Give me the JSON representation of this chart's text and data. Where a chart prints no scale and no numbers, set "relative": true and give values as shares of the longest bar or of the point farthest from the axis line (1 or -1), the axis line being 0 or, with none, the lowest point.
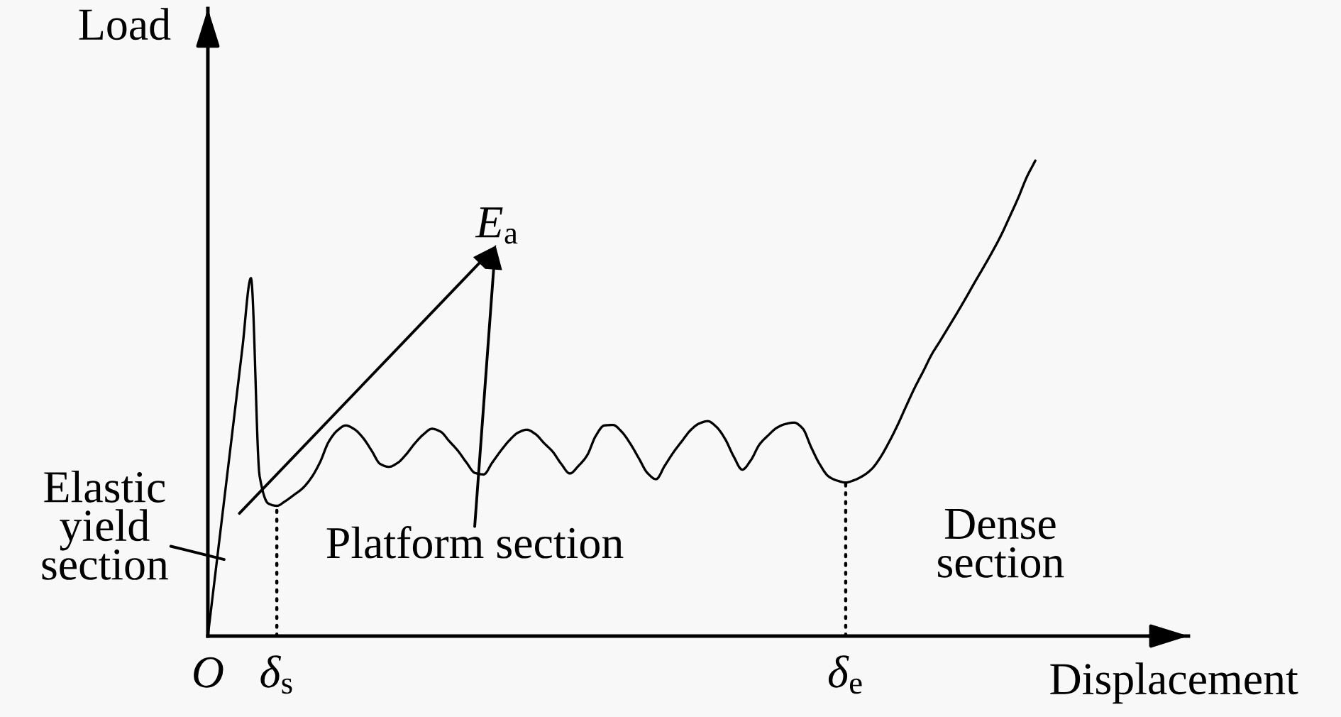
{
  "chart_data": {
    "type": "line",
    "relative": true,
    "xlabel": "Displacement",
    "ylabel": "Load",
    "categories": [
      "O",
      null,
      null,
      null,
      null,
      null,
      null,
      null,
      "δ$_{s}$",
      null,
      null,
      null,
      null,
      null,
      null,
      null,
      null,
      null,
      null,
      null,
      null,
      null,
      null,
      null,
      null,
      null,
      null,
      null,
      null,
      null,
      null,
      null,
      null,
      null,
      null,
      null,
      null,
      null,
      null,
      null,
      null,
      null,
      null,
      null,
      null,
      null,
      null,
      null,
      null,
      null,
      null,
      null,
      null,
      null,
      null,
      null,
      null,
      null,
      null,
      null,
      null,
      null,
      null,
      null,
      null,
      null,
      null,
      null,
      null,
      null,
      null,
      null,
      null,
      null,
      "δ$_{e}$",
      null,
      null,
      null,
      null,
      null,
      null,
      null,
      null,
      null,
      null,
      null,
      null,
      null,
      null,
      null,
      null,
      null,
      null,
      null,
      null,
      null,
      null
    ],
    "series": [
      {
        "color": "#000000",
        "values": [
          0,
          0.151,
          0.302,
          0.453,
          0.605,
          0.753,
          0.337,
          0.279,
          0.274,
          0.284,
          0.297,
          0.311,
          0.333,
          0.365,
          0.408,
          0.432,
          0.443,
          0.435,
          0.417,
          0.39,
          0.362,
          0.356,
          0.364,
          0.382,
          0.405,
          0.424,
          0.436,
          0.43,
          0.41,
          0.39,
          0.365,
          0.343,
          0.34,
          0.365,
          0.39,
          0.412,
          0.428,
          0.434,
          0.425,
          0.406,
          0.388,
          0.362,
          0.342,
          0.358,
          0.38,
          0.421,
          0.443,
          0.444,
          0.43,
          0.405,
          0.374,
          0.343,
          0.33,
          0.358,
          0.386,
          0.41,
          0.433,
          0.447,
          0.452,
          0.44,
          0.415,
          0.378,
          0.35,
          0.37,
          0.403,
          0.422,
          0.438,
          0.446,
          0.449,
          0.437,
          0.397,
          0.361,
          0.336,
          0.327,
          0.323,
          0.328,
          0.337,
          0.351,
          0.375,
          0.407,
          0.443,
          0.483,
          0.522,
          0.557,
          0.593,
          0.622,
          0.652,
          0.682,
          0.713,
          0.745,
          0.776,
          0.808,
          0.842,
          0.881,
          0.921,
          0.965,
          1.0
        ]
      }
    ],
    "tick_labels": "x",
    "ref_lines": [
      {
        "axis": "x",
        "value": "δ$_{s}$",
        "color": "#000000",
        "line_style": "dotted"
      },
      {
        "axis": "x",
        "value": "δ$_{e}$",
        "color": "#000000",
        "line_style": "dotted"
      }
    ],
    "annotations": [
      "Elastic\nyield\nsection",
      "E$_{a}$",
      "Platform section",
      "Dense\nsection"
    ]
  }
}
